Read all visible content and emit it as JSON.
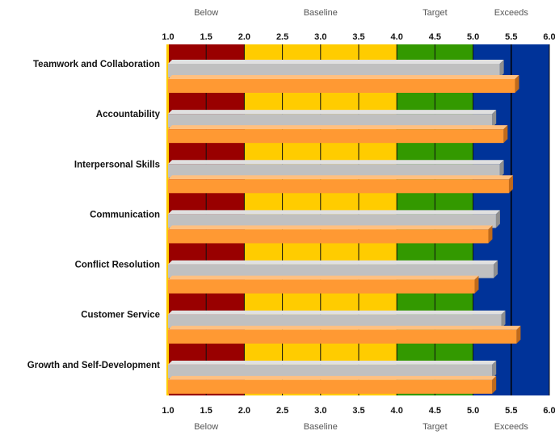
{
  "chart_data": {
    "type": "bar",
    "orientation": "horizontal",
    "style": "3d",
    "grid": true,
    "legend": "none",
    "xlim": [
      1.0,
      6.0
    ],
    "ticks": [
      "1.0",
      "1.5",
      "2.0",
      "2.5",
      "3.0",
      "3.5",
      "4.0",
      "4.5",
      "5.0",
      "5.5",
      "6.0"
    ],
    "tick_values": [
      1.0,
      1.5,
      2.0,
      2.5,
      3.0,
      3.5,
      4.0,
      4.5,
      5.0,
      5.5,
      6.0
    ],
    "zones": [
      {
        "label": "Below",
        "from": 1.0,
        "to": 2.0,
        "color": "#990000"
      },
      {
        "label": "Baseline",
        "from": 2.0,
        "to": 4.0,
        "color": "#ffcc00"
      },
      {
        "label": "Target",
        "from": 4.0,
        "to": 5.0,
        "color": "#339900"
      },
      {
        "label": "Exceeds",
        "from": 5.0,
        "to": 6.0,
        "color": "#003399"
      }
    ],
    "categories": [
      "Teamwork and Collaboration",
      "Accountability",
      "Interpersonal Skills",
      "Communication",
      "Conflict Resolution",
      "Customer Service",
      "Growth and Self-Development"
    ],
    "series": [
      {
        "color": "#c0c0c0",
        "values": [
          5.35,
          5.25,
          5.35,
          5.3,
          5.27,
          5.37,
          5.25
        ]
      },
      {
        "color": "#ff9933",
        "values": [
          5.55,
          5.4,
          5.47,
          5.2,
          5.02,
          5.57,
          5.25
        ]
      }
    ],
    "reference_line": 5.5
  }
}
